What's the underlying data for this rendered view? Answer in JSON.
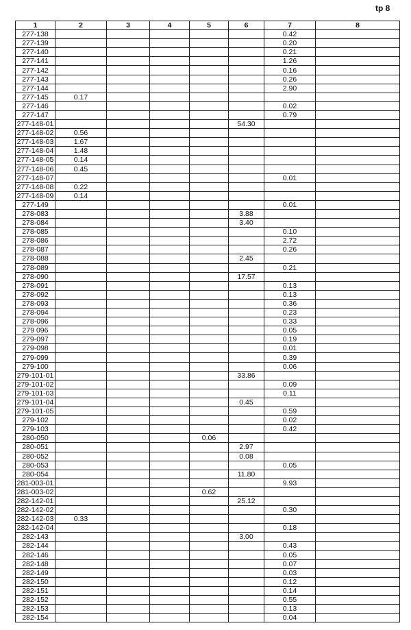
{
  "page_label": "tp 8",
  "columns": [
    "1",
    "2",
    "3",
    "4",
    "5",
    "6",
    "7",
    "8"
  ],
  "rows": [
    [
      "277-138",
      "",
      "",
      "",
      "",
      "",
      "0.42",
      ""
    ],
    [
      "277-139",
      "",
      "",
      "",
      "",
      "",
      "0.20",
      ""
    ],
    [
      "277-140",
      "",
      "",
      "",
      "",
      "",
      "0.21",
      ""
    ],
    [
      "277-141",
      "",
      "",
      "",
      "",
      "",
      "1.26",
      ""
    ],
    [
      "277-142",
      "",
      "",
      "",
      "",
      "",
      "0.16",
      ""
    ],
    [
      "277-143",
      "",
      "",
      "",
      "",
      "",
      "0.26",
      ""
    ],
    [
      "277-144",
      "",
      "",
      "",
      "",
      "",
      "2.90",
      ""
    ],
    [
      "277-145",
      "0.17",
      "",
      "",
      "",
      "",
      "",
      ""
    ],
    [
      "277-146",
      "",
      "",
      "",
      "",
      "",
      "0.02",
      ""
    ],
    [
      "277-147",
      "",
      "",
      "",
      "",
      "",
      "0.79",
      ""
    ],
    [
      "277-148-01",
      "",
      "",
      "",
      "",
      "54.30",
      "",
      ""
    ],
    [
      "277-148-02",
      "0.56",
      "",
      "",
      "",
      "",
      "",
      ""
    ],
    [
      "277-148-03",
      "1.67",
      "",
      "",
      "",
      "",
      "",
      ""
    ],
    [
      "277-148-04",
      "1.48",
      "",
      "",
      "",
      "",
      "",
      ""
    ],
    [
      "277-148-05",
      "0.14",
      "",
      "",
      "",
      "",
      "",
      ""
    ],
    [
      "277-148-06",
      "0.45",
      "",
      "",
      "",
      "",
      "",
      ""
    ],
    [
      "277-148-07",
      "",
      "",
      "",
      "",
      "",
      "0.01",
      ""
    ],
    [
      "277-148-08",
      "0.22",
      "",
      "",
      "",
      "",
      "",
      ""
    ],
    [
      "277-148-09",
      "0.14",
      "",
      "",
      "",
      "",
      "",
      ""
    ],
    [
      "277-149",
      "",
      "",
      "",
      "",
      "",
      "0.01",
      ""
    ],
    [
      "278-083",
      "",
      "",
      "",
      "",
      "3.88",
      "",
      ""
    ],
    [
      "278-084",
      "",
      "",
      "",
      "",
      "3.40",
      "",
      ""
    ],
    [
      "278-085",
      "",
      "",
      "",
      "",
      "",
      "0.10",
      ""
    ],
    [
      "278-086",
      "",
      "",
      "",
      "",
      "",
      "2.72",
      ""
    ],
    [
      "278-087",
      "",
      "",
      "",
      "",
      "",
      "0.26",
      ""
    ],
    [
      "278-088",
      "",
      "",
      "",
      "",
      "2.45",
      "",
      ""
    ],
    [
      "278-089",
      "",
      "",
      "",
      "",
      "",
      "0.21",
      ""
    ],
    [
      "278-090",
      "",
      "",
      "",
      "",
      "17.57",
      "",
      ""
    ],
    [
      "278-091",
      "",
      "",
      "",
      "",
      "",
      "0.13",
      ""
    ],
    [
      "278-092",
      "",
      "",
      "",
      "",
      "",
      "0.13",
      ""
    ],
    [
      "278-093",
      "",
      "",
      "",
      "",
      "",
      "0.36",
      ""
    ],
    [
      "278-094",
      "",
      "",
      "",
      "",
      "",
      "0.23",
      ""
    ],
    [
      "278-096",
      "",
      "",
      "",
      "",
      "",
      "0.33",
      ""
    ],
    [
      "279 096",
      "",
      "",
      "",
      "",
      "",
      "0.05",
      ""
    ],
    [
      "279-097",
      "",
      "",
      "",
      "",
      "",
      "0.19",
      ""
    ],
    [
      "279-098",
      "",
      "",
      "",
      "",
      "",
      "0.01",
      ""
    ],
    [
      "279-099",
      "",
      "",
      "",
      "",
      "",
      "0.39",
      ""
    ],
    [
      "279-100",
      "",
      "",
      "",
      "",
      "",
      "0.06",
      ""
    ],
    [
      "279-101-01",
      "",
      "",
      "",
      "",
      "33.86",
      "",
      ""
    ],
    [
      "279-101-02",
      "",
      "",
      "",
      "",
      "",
      "0.09",
      ""
    ],
    [
      "279-101-03",
      "",
      "",
      "",
      "",
      "",
      "0.11",
      ""
    ],
    [
      "279-101-04",
      "",
      "",
      "",
      "",
      "0.45",
      "",
      ""
    ],
    [
      "279-101-05",
      "",
      "",
      "",
      "",
      "",
      "0.59",
      ""
    ],
    [
      "279-102",
      "",
      "",
      "",
      "",
      "",
      "0.02",
      ""
    ],
    [
      "279-103",
      "",
      "",
      "",
      "",
      "",
      "0.42",
      ""
    ],
    [
      "280-050",
      "",
      "",
      "",
      "0.06",
      "",
      "",
      ""
    ],
    [
      "280-051",
      "",
      "",
      "",
      "",
      "2.97",
      "",
      ""
    ],
    [
      "280-052",
      "",
      "",
      "",
      "",
      "0.08",
      "",
      ""
    ],
    [
      "280-053",
      "",
      "",
      "",
      "",
      "",
      "0.05",
      ""
    ],
    [
      "280-054",
      "",
      "",
      "",
      "",
      "11.80",
      "",
      ""
    ],
    [
      "281-003-01",
      "",
      "",
      "",
      "",
      "",
      "9.93",
      ""
    ],
    [
      "281-003-02",
      "",
      "",
      "",
      "0.62",
      "",
      "",
      ""
    ],
    [
      "282-142-01",
      "",
      "",
      "",
      "",
      "25.12",
      "",
      ""
    ],
    [
      "282-142-02",
      "",
      "",
      "",
      "",
      "",
      "0.30",
      ""
    ],
    [
      "282-142-03",
      "0.33",
      "",
      "",
      "",
      "",
      "",
      ""
    ],
    [
      "282-142-04",
      "",
      "",
      "",
      "",
      "",
      "0.18",
      ""
    ],
    [
      "282-143",
      "",
      "",
      "",
      "",
      "3.00",
      "",
      ""
    ],
    [
      "282-144",
      "",
      "",
      "",
      "",
      "",
      "0.43",
      ""
    ],
    [
      "282-146",
      "",
      "",
      "",
      "",
      "",
      "0.05",
      ""
    ],
    [
      "282-148",
      "",
      "",
      "",
      "",
      "",
      "0.07",
      ""
    ],
    [
      "282-149",
      "",
      "",
      "",
      "",
      "",
      "0.03",
      ""
    ],
    [
      "282-150",
      "",
      "",
      "",
      "",
      "",
      "0.12",
      ""
    ],
    [
      "282-151",
      "",
      "",
      "",
      "",
      "",
      "0.14",
      ""
    ],
    [
      "282-152",
      "",
      "",
      "",
      "",
      "",
      "0.55",
      ""
    ],
    [
      "282-153",
      "",
      "",
      "",
      "",
      "",
      "0.13",
      ""
    ],
    [
      "282-154",
      "",
      "",
      "",
      "",
      "",
      "0.04",
      ""
    ]
  ]
}
